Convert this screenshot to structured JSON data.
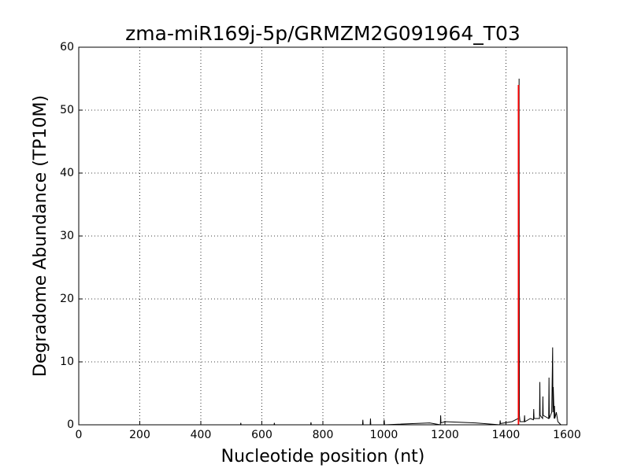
{
  "chart_data": {
    "type": "line",
    "title": "zma-miR169j-5p/GRMZM2G091964_T03",
    "x_label": "Nucleotide position (nt)",
    "y_label": "Degradome Abundance (TP10M)",
    "xlim": [
      0,
      1600
    ],
    "xticks": [
      0,
      200,
      400,
      600,
      800,
      1000,
      1200,
      1400,
      1600
    ],
    "ylim": [
      0,
      60
    ],
    "yticks": [
      0,
      10,
      20,
      30,
      40,
      50,
      60
    ],
    "grid": true,
    "series": [
      {
        "color": "#000000",
        "x": [
          0,
          530,
          531,
          532,
          640,
          641,
          642,
          760,
          761,
          762,
          930,
          931,
          932,
          955,
          956,
          957,
          1000,
          1001,
          1002,
          1150,
          1185,
          1186,
          1187,
          1200,
          1300,
          1380,
          1381,
          1382,
          1420,
          1440,
          1443,
          1444,
          1446,
          1460,
          1461,
          1462,
          1480,
          1490,
          1491,
          1492,
          1510,
          1511,
          1512,
          1520,
          1521,
          1522,
          1540,
          1541,
          1542,
          1550,
          1553,
          1554,
          1555,
          1558,
          1559,
          1560,
          1565,
          1570,
          1580,
          1600
        ],
        "values": [
          0,
          0,
          0.3,
          0,
          0,
          0.3,
          0,
          0,
          0.4,
          0,
          0,
          0.8,
          0,
          0,
          1,
          0,
          0,
          0.8,
          0,
          0.3,
          0,
          1.5,
          0.3,
          0.5,
          0.3,
          0,
          0.7,
          0.2,
          0.5,
          1,
          55,
          1.5,
          0.5,
          0.5,
          1.5,
          0.5,
          1,
          0.8,
          2.5,
          1,
          1,
          6.8,
          1.5,
          1,
          4.5,
          1.5,
          1,
          7.5,
          1,
          2,
          12.3,
          2,
          6,
          1,
          3,
          1,
          2,
          0.5,
          0,
          0
        ]
      },
      {
        "color": "#ff0000",
        "x": [
          1441,
          1441
        ],
        "values": [
          0,
          54
        ]
      }
    ]
  }
}
